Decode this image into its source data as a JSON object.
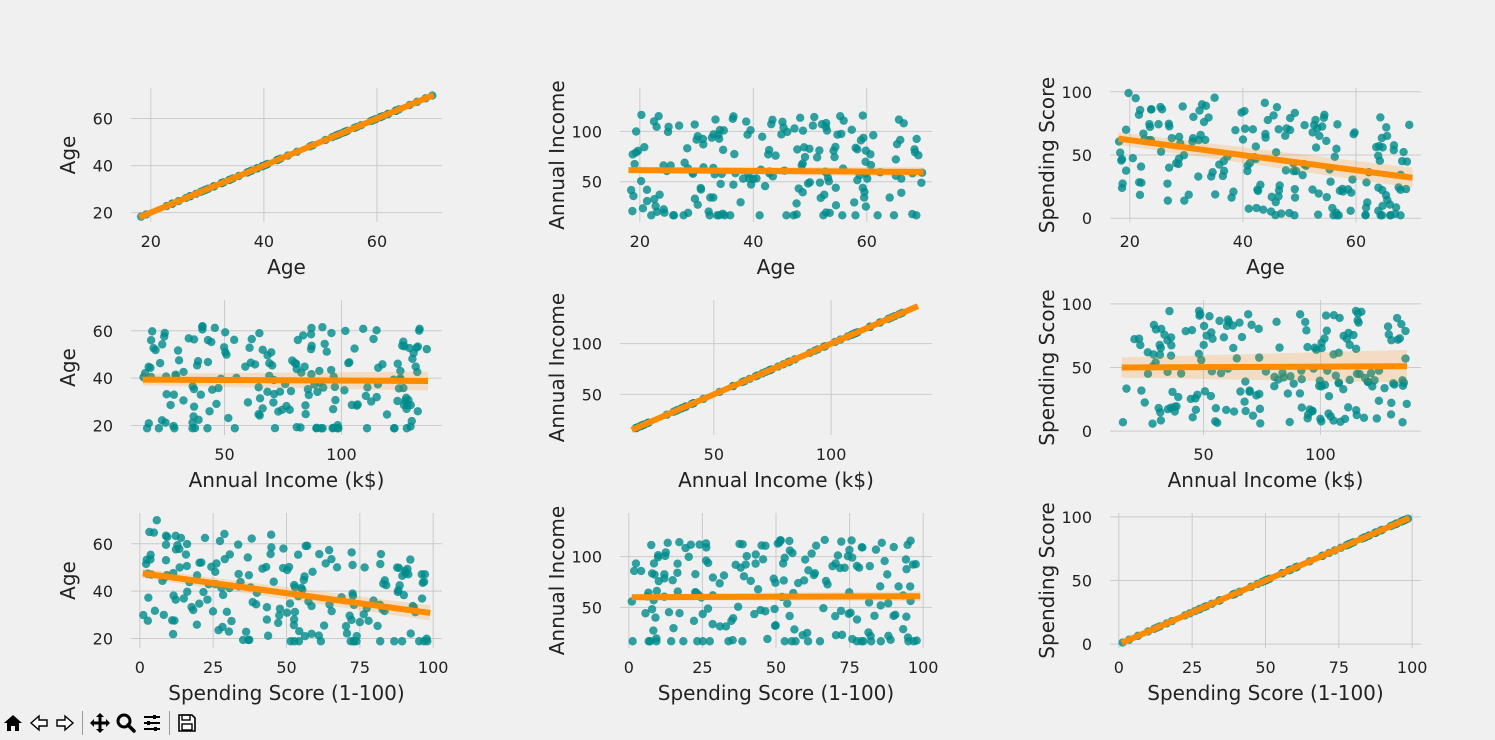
{
  "chart_data": [
    {
      "type": "scatter",
      "xlabel": "Age",
      "ylabel": "Age",
      "xticks": [
        20,
        40,
        60
      ],
      "yticks": [
        20,
        40,
        60
      ],
      "xlim": [
        16.5,
        71.5
      ],
      "ylim": [
        16,
        73
      ],
      "fit": {
        "x": [
          18,
          70
        ],
        "y": [
          18,
          70
        ],
        "ci": 0.4
      },
      "scatter_color": "#008b8b",
      "line_color": "#ff8c00"
    },
    {
      "type": "scatter",
      "xlabel": "Age",
      "ylabel": "Annual Income",
      "xticks": [
        20,
        40,
        60
      ],
      "yticks": [
        50,
        100
      ],
      "xlim": [
        16.5,
        71.5
      ],
      "ylim": [
        10,
        143
      ],
      "fit": {
        "x": [
          18,
          70
        ],
        "y": [
          61.5,
          59.7
        ],
        "ci": 3
      },
      "scatter_color": "#008b8b",
      "line_color": "#ff8c00"
    },
    {
      "type": "scatter",
      "xlabel": "Age",
      "ylabel": "Spending Score",
      "xticks": [
        20,
        40,
        60
      ],
      "yticks": [
        0,
        50,
        100
      ],
      "xlim": [
        16.5,
        71.5
      ],
      "ylim": [
        -3,
        103
      ],
      "fit": {
        "x": [
          18,
          70
        ],
        "y": [
          63,
          32
        ],
        "ci": 5
      },
      "scatter_color": "#008b8b",
      "line_color": "#ff8c00"
    },
    {
      "type": "scatter",
      "xlabel": "Annual Income (k$)",
      "ylabel": "Age",
      "xticks": [
        50,
        100
      ],
      "yticks": [
        20,
        40,
        60
      ],
      "xlim": [
        10,
        143
      ],
      "ylim": [
        16,
        73
      ],
      "fit": {
        "x": [
          15,
          137
        ],
        "y": [
          39.4,
          38.8
        ],
        "ci": 2.5
      },
      "scatter_color": "#008b8b",
      "line_color": "#ff8c00"
    },
    {
      "type": "scatter",
      "xlabel": "Annual Income (k$)",
      "ylabel": "Annual Income",
      "xticks": [
        50,
        100
      ],
      "yticks": [
        50,
        100
      ],
      "xlim": [
        10,
        143
      ],
      "ylim": [
        10,
        143
      ],
      "fit": {
        "x": [
          15,
          137
        ],
        "y": [
          15,
          137
        ],
        "ci": 0.8
      },
      "scatter_color": "#008b8b",
      "line_color": "#ff8c00"
    },
    {
      "type": "scatter",
      "xlabel": "Annual Income (k$)",
      "ylabel": "Spending Score",
      "xticks": [
        50,
        100
      ],
      "yticks": [
        0,
        50,
        100
      ],
      "xlim": [
        10,
        143
      ],
      "ylim": [
        -3,
        103
      ],
      "fit": {
        "x": [
          15,
          137
        ],
        "y": [
          50,
          51
        ],
        "ci": 8
      },
      "scatter_color": "#008b8b",
      "line_color": "#ff8c00"
    },
    {
      "type": "scatter",
      "xlabel": "Spending Score (1-100)",
      "ylabel": "Age",
      "xticks": [
        0,
        25,
        50,
        75,
        100
      ],
      "yticks": [
        20,
        40,
        60
      ],
      "xlim": [
        -3,
        103
      ],
      "ylim": [
        16,
        73
      ],
      "fit": {
        "x": [
          1,
          99
        ],
        "y": [
          47.5,
          30.8
        ],
        "ci": 2
      },
      "scatter_color": "#008b8b",
      "line_color": "#ff8c00"
    },
    {
      "type": "scatter",
      "xlabel": "Spending Score (1-100)",
      "ylabel": "Annual Income",
      "xticks": [
        0,
        25,
        50,
        75,
        100
      ],
      "yticks": [
        50,
        100
      ],
      "xlim": [
        -3,
        103
      ],
      "ylim": [
        10,
        143
      ],
      "fit": {
        "x": [
          1,
          99
        ],
        "y": [
          60,
          61
        ],
        "ci": 3
      },
      "scatter_color": "#008b8b",
      "line_color": "#ff8c00"
    },
    {
      "type": "scatter",
      "xlabel": "Spending Score (1-100)",
      "ylabel": "Spending Score",
      "xticks": [
        0,
        25,
        50,
        75,
        100
      ],
      "yticks": [
        0,
        50,
        100
      ],
      "xlim": [
        -3,
        103
      ],
      "ylim": [
        -3,
        103
      ],
      "fit": {
        "x": [
          1,
          99
        ],
        "y": [
          1,
          99
        ],
        "ci": 0.5
      },
      "scatter_color": "#008b8b",
      "line_color": "#ff8c00"
    }
  ],
  "toolbar": {
    "buttons": [
      "home-icon",
      "back-icon",
      "forward-icon",
      "pan-icon",
      "zoom-icon",
      "configure-icon",
      "save-icon"
    ]
  }
}
